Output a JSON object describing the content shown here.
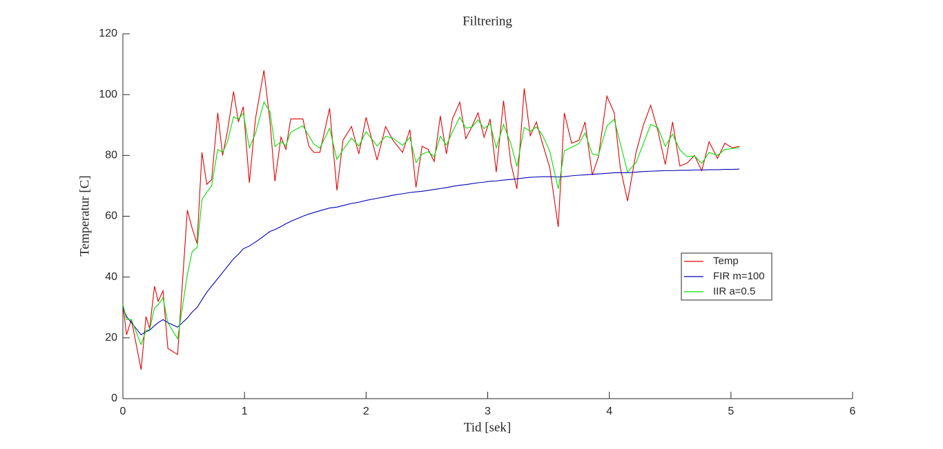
{
  "chart_data": {
    "type": "line",
    "title": "Filtrering",
    "x_label": "Tid [sek]",
    "y_label": "Temperatur [C]",
    "xlim": [
      0,
      6
    ],
    "xticks": [
      0,
      1,
      2,
      3,
      4,
      5,
      6
    ],
    "ylim": [
      0,
      120
    ],
    "yticks": [
      0,
      20,
      40,
      60,
      80,
      100,
      120
    ],
    "grid": false,
    "legend_location": "east",
    "x": [
      0,
      0.03,
      0.07,
      0.15,
      0.19,
      0.22,
      0.26,
      0.29,
      0.33,
      0.37,
      0.45,
      0.53,
      0.57,
      0.61,
      0.65,
      0.69,
      0.73,
      0.78,
      0.82,
      0.86,
      0.91,
      0.95,
      0.99,
      1.04,
      1.09,
      1.16,
      1.21,
      1.25,
      1.3,
      1.34,
      1.38,
      1.48,
      1.53,
      1.57,
      1.62,
      1.7,
      1.76,
      1.81,
      1.88,
      1.94,
      2.0,
      2.09,
      2.16,
      2.22,
      2.3,
      2.36,
      2.41,
      2.46,
      2.51,
      2.56,
      2.61,
      2.66,
      2.71,
      2.77,
      2.82,
      2.87,
      2.92,
      2.97,
      3.02,
      3.07,
      3.13,
      3.19,
      3.24,
      3.3,
      3.35,
      3.4,
      3.45,
      3.51,
      3.58,
      3.63,
      3.69,
      3.75,
      3.8,
      3.86,
      3.91,
      3.98,
      4.04,
      4.09,
      4.15,
      4.22,
      4.28,
      4.34,
      4.4,
      4.46,
      4.52,
      4.58,
      4.64,
      4.7,
      4.76,
      4.82,
      4.89,
      4.95,
      5.01,
      5.07
    ],
    "series": [
      {
        "name": "Temp",
        "color": "#e00000",
        "values": [
          31,
          21,
          26,
          9.5,
          27,
          23,
          37,
          32,
          35.5,
          16.5,
          14.5,
          62,
          56,
          51,
          81,
          70.5,
          72,
          94,
          80,
          88,
          101,
          91,
          96,
          71,
          92,
          108,
          91,
          71.5,
          86,
          82,
          92,
          92,
          83,
          81,
          81,
          95.5,
          68.5,
          85,
          89.5,
          80.5,
          92.5,
          78.5,
          89.5,
          85,
          81,
          88.5,
          69.5,
          83,
          82,
          78,
          93,
          80.5,
          92,
          97.5,
          85.5,
          89.5,
          94,
          86,
          92,
          74.5,
          98,
          77.5,
          69,
          102,
          86.5,
          91,
          84,
          76,
          56.5,
          94,
          84,
          85,
          91,
          73.5,
          79.5,
          99.5,
          94,
          76,
          65,
          81,
          90,
          96.5,
          88,
          77,
          91,
          76.5,
          77.5,
          80,
          75,
          84.5,
          79,
          84,
          82.5,
          83
        ]
      },
      {
        "name": "FIR m=100",
        "color": "#0000b4",
        "values": [
          30,
          27,
          25,
          21,
          22,
          22.5,
          24,
          25,
          26,
          25,
          23.5,
          26.5,
          28.5,
          30,
          32.5,
          35,
          37,
          39.5,
          41.5,
          43.5,
          46,
          47.5,
          49.3,
          50.2,
          51.5,
          53.5,
          55,
          55.6,
          56.6,
          57.5,
          58.3,
          60,
          60.7,
          61.2,
          61.8,
          62.7,
          63,
          63.5,
          64.2,
          64.6,
          65.2,
          65.9,
          66.4,
          66.9,
          67.4,
          67.8,
          68,
          68.2,
          68.5,
          68.8,
          69.1,
          69.4,
          69.8,
          70.2,
          70.4,
          70.7,
          71,
          71.2,
          71.5,
          71.6,
          71.9,
          72.1,
          72.3,
          72.6,
          72.8,
          72.9,
          73,
          73,
          72.9,
          73,
          73.3,
          73.5,
          73.6,
          73.8,
          73.9,
          74.1,
          74.3,
          74.3,
          74.3,
          74.5,
          74.7,
          74.8,
          74.9,
          75,
          75,
          75.1,
          75.1,
          75.2,
          75.2,
          75.3,
          75.3,
          75.4,
          75.4,
          75.5
        ]
      },
      {
        "name": "IIR a=0.5",
        "color": "#00e000",
        "values": [
          31,
          26,
          26,
          17.8,
          22.4,
          22.7,
          29.8,
          30.9,
          33.2,
          24.9,
          19.7,
          40.8,
          48.4,
          49.7,
          65.4,
          67.9,
          70,
          82,
          81,
          84.5,
          92.7,
          91.9,
          93.9,
          82.5,
          87.2,
          97.6,
          94.3,
          82.9,
          84.5,
          83.2,
          87.6,
          89.8,
          86.4,
          83.7,
          82.4,
          88.9,
          78.7,
          81.9,
          85.7,
          83.1,
          87.8,
          83.1,
          86.3,
          85.7,
          83.3,
          85.9,
          77.7,
          80.4,
          81.2,
          79.6,
          86.3,
          83.4,
          87.7,
          92.6,
          89,
          89.3,
          91.7,
          88.8,
          90.4,
          82.5,
          90.2,
          83.9,
          76.4,
          89.2,
          87.9,
          89.4,
          86.7,
          81.4,
          69,
          81.5,
          82.7,
          83.9,
          87.4,
          80.5,
          80,
          89.7,
          91.9,
          83.9,
          74.5,
          77.7,
          83.9,
          90.2,
          89.1,
          83,
          87,
          81.8,
          79.6,
          79.8,
          77.4,
          81,
          80,
          82,
          82.2,
          82.6
        ]
      }
    ]
  }
}
